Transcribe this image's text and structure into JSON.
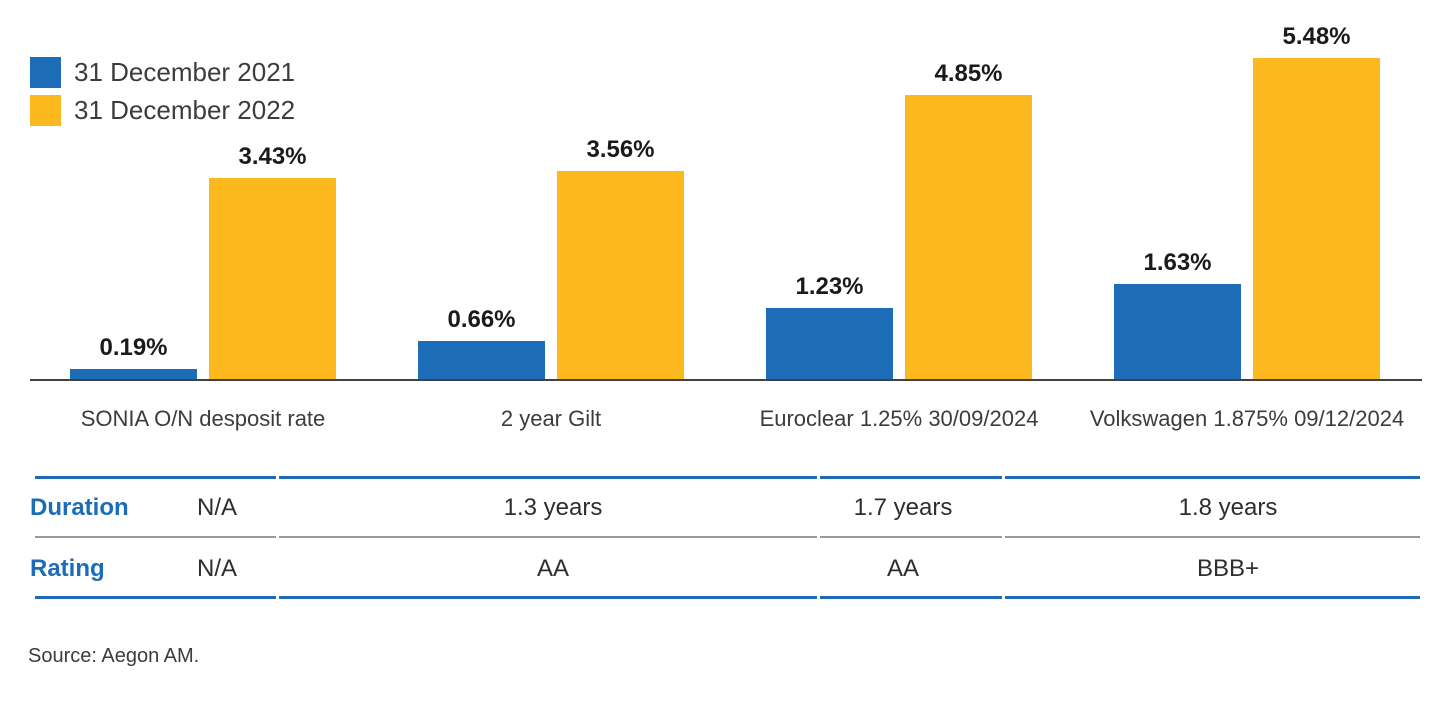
{
  "colors": {
    "accent_blue": "#1c6cb7",
    "accent_yellow": "#fdb81e",
    "axis": "#414141",
    "divider_gray": "#999999",
    "value_label": "#1a1a1a",
    "text": "#3c3c3c"
  },
  "chart_data": {
    "type": "bar",
    "title": "",
    "xlabel": "",
    "ylabel": "",
    "grid": false,
    "legend_position": "top-left",
    "ylim": [
      0,
      6.2
    ],
    "categories": [
      "SONIA O/N desposit rate",
      "2 year Gilt",
      "Euroclear 1.25% 30/09/2024",
      "Volkswagen 1.875% 09/12/2024"
    ],
    "series": [
      {
        "name": "31 December 2021",
        "color": "#1c6cb7",
        "values": [
          0.19,
          0.66,
          1.23,
          1.63
        ],
        "labels": [
          "0.19%",
          "0.66%",
          "1.23%",
          "1.63%"
        ]
      },
      {
        "name": "31 December 2022",
        "color": "#fdb81e",
        "values": [
          3.43,
          3.56,
          4.85,
          5.48
        ],
        "labels": [
          "3.43%",
          "3.56%",
          "4.85%",
          "5.48%"
        ]
      }
    ]
  },
  "table": {
    "rows": [
      {
        "label": "Duration",
        "values": [
          "N/A",
          "1.3 years",
          "1.7 years",
          "1.8 years"
        ]
      },
      {
        "label": "Rating",
        "values": [
          "N/A",
          "AA",
          "AA",
          "BBB+"
        ]
      }
    ]
  },
  "source": "Source: Aegon AM."
}
